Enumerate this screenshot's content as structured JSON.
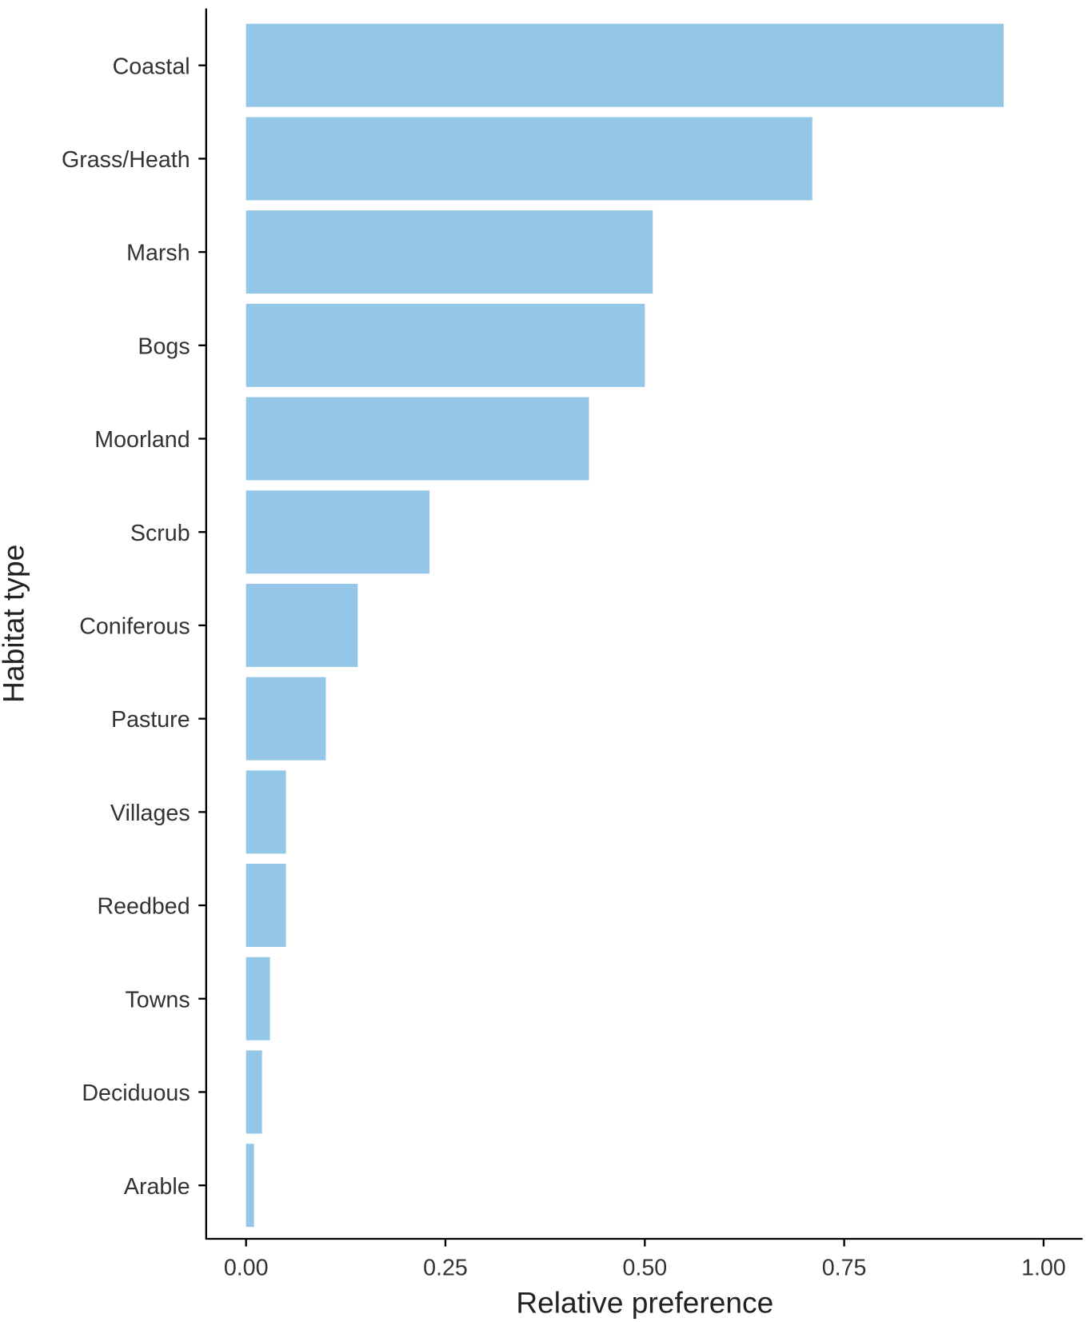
{
  "chart_data": {
    "type": "bar",
    "orientation": "horizontal",
    "title": "",
    "xlabel": "Relative preference",
    "ylabel": "Habitat type",
    "xlim": [
      0,
      1.0
    ],
    "xticks": [
      "0.00",
      "0.25",
      "0.50",
      "0.75",
      "1.00"
    ],
    "xtick_values": [
      0,
      0.25,
      0.5,
      0.75,
      1.0
    ],
    "categories": [
      "Coastal",
      "Grass/Heath",
      "Marsh",
      "Bogs",
      "Moorland",
      "Scrub",
      "Coniferous",
      "Pasture",
      "Villages",
      "Reedbed",
      "Towns",
      "Deciduous",
      "Arable"
    ],
    "values": [
      0.95,
      0.71,
      0.51,
      0.5,
      0.43,
      0.23,
      0.14,
      0.1,
      0.05,
      0.05,
      0.03,
      0.02,
      0.01
    ],
    "bar_color": "#93C6E7",
    "grid": false
  }
}
